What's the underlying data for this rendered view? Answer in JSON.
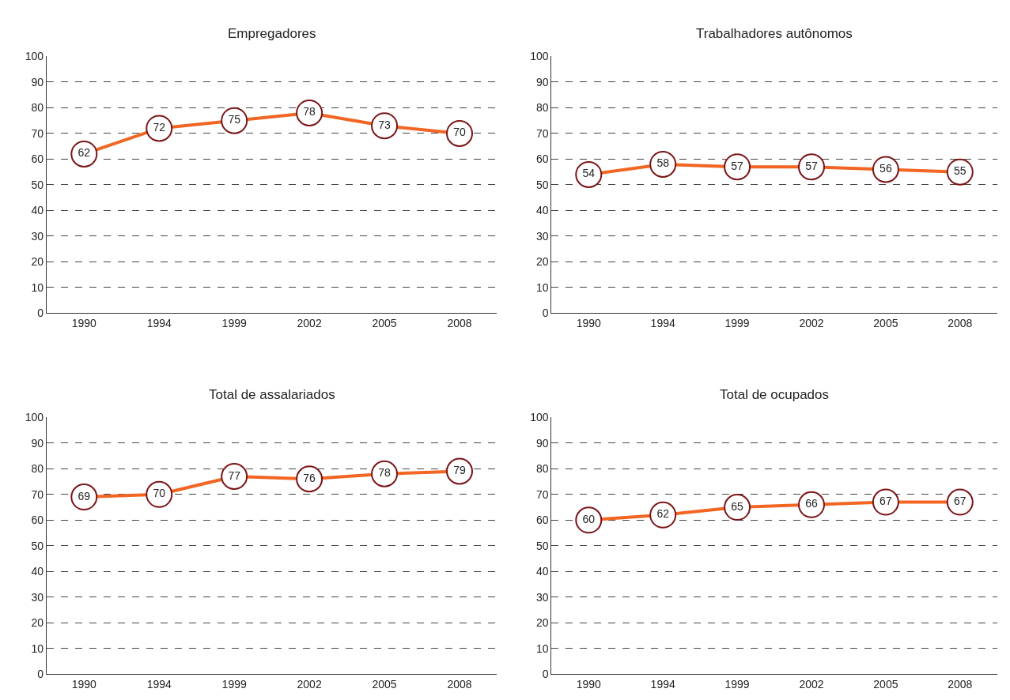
{
  "chart_data": [
    {
      "type": "line",
      "title": "Empregadores",
      "categories": [
        "1990",
        "1994",
        "1999",
        "2002",
        "2005",
        "2008"
      ],
      "series": [
        {
          "color": "#f26522",
          "values": [
            62,
            72,
            75,
            78,
            73,
            70
          ]
        }
      ],
      "ylim": [
        0,
        100
      ],
      "yticks": [
        0,
        10,
        20,
        30,
        40,
        50,
        60,
        70,
        80,
        90,
        100
      ],
      "grid": "y",
      "marker": "circle",
      "line_style": "solid",
      "data_labels": true
    },
    {
      "type": "line",
      "title": "Trabalhadores autônomos",
      "categories": [
        "1990",
        "1994",
        "1999",
        "2002",
        "2005",
        "2008"
      ],
      "series": [
        {
          "color": "#f26522",
          "values": [
            54,
            58,
            57,
            57,
            56,
            55
          ]
        }
      ],
      "ylim": [
        0,
        100
      ],
      "yticks": [
        0,
        10,
        20,
        30,
        40,
        50,
        60,
        70,
        80,
        90,
        100
      ],
      "grid": "y",
      "marker": "circle",
      "line_style": "solid",
      "data_labels": true
    },
    {
      "type": "line",
      "title": "Total de assalariados",
      "categories": [
        "1990",
        "1994",
        "1999",
        "2002",
        "2005",
        "2008"
      ],
      "series": [
        {
          "color": "#f26522",
          "values": [
            69,
            70,
            77,
            76,
            78,
            79
          ]
        }
      ],
      "ylim": [
        0,
        100
      ],
      "yticks": [
        0,
        10,
        20,
        30,
        40,
        50,
        60,
        70,
        80,
        90,
        100
      ],
      "grid": "y",
      "marker": "circle",
      "line_style": "solid",
      "data_labels": true
    },
    {
      "type": "line",
      "title": "Total de ocupados",
      "categories": [
        "1990",
        "1994",
        "1999",
        "2002",
        "2005",
        "2008"
      ],
      "series": [
        {
          "color": "#f26522",
          "values": [
            60,
            62,
            65,
            66,
            67,
            67
          ]
        }
      ],
      "ylim": [
        0,
        100
      ],
      "yticks": [
        0,
        10,
        20,
        30,
        40,
        50,
        60,
        70,
        80,
        90,
        100
      ],
      "grid": "y",
      "marker": "circle",
      "line_style": "solid",
      "data_labels": true
    }
  ]
}
